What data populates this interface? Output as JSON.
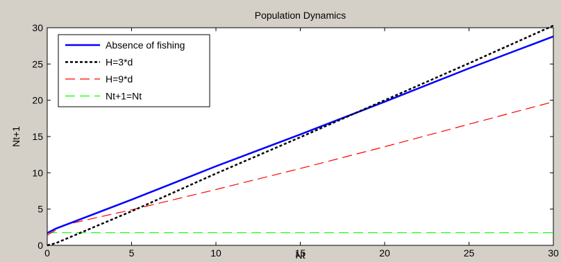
{
  "chart_data": {
    "type": "line",
    "title": "Population Dynamics",
    "xlabel": "Nt",
    "ylabel": "Nt+1",
    "xlim": [
      0,
      30
    ],
    "ylim": [
      0,
      30
    ],
    "xticks": [
      0,
      5,
      10,
      15,
      20,
      25,
      30
    ],
    "yticks": [
      0,
      5,
      10,
      15,
      20,
      25,
      30
    ],
    "grid": false,
    "legend_position": "top-left",
    "background_color": "#d4d0c8",
    "plot_background_color": "#ffffff",
    "series": [
      {
        "name": "Absence of fishing",
        "color": "#0000ff",
        "line_style": "solid",
        "x": [
          0,
          0.5,
          5,
          10,
          15,
          20,
          25,
          30
        ],
        "y": [
          1.7,
          2.3,
          6.3,
          10.9,
          15.3,
          19.8,
          24.4,
          28.8
        ]
      },
      {
        "name": "H=3*d",
        "color": "#000000",
        "line_style": "dotted",
        "x": [
          0,
          0.5,
          5,
          10,
          15,
          20,
          25,
          30
        ],
        "y": [
          0.0,
          0.3,
          4.7,
          9.9,
          14.9,
          20.0,
          25.1,
          30.3
        ]
      },
      {
        "name": "H=9*d",
        "color": "#ff0000",
        "line_style": "dashed",
        "x": [
          0,
          1,
          2.5,
          5,
          10,
          15,
          20,
          25,
          30
        ],
        "y": [
          1.4,
          2.8,
          3.6,
          4.9,
          7.7,
          10.6,
          13.6,
          16.7,
          19.8
        ]
      },
      {
        "name": "Nt+1=Nt",
        "color": "#00ff00",
        "line_style": "dashed",
        "x": [
          0,
          30
        ],
        "y": [
          1.75,
          1.75
        ]
      }
    ]
  }
}
